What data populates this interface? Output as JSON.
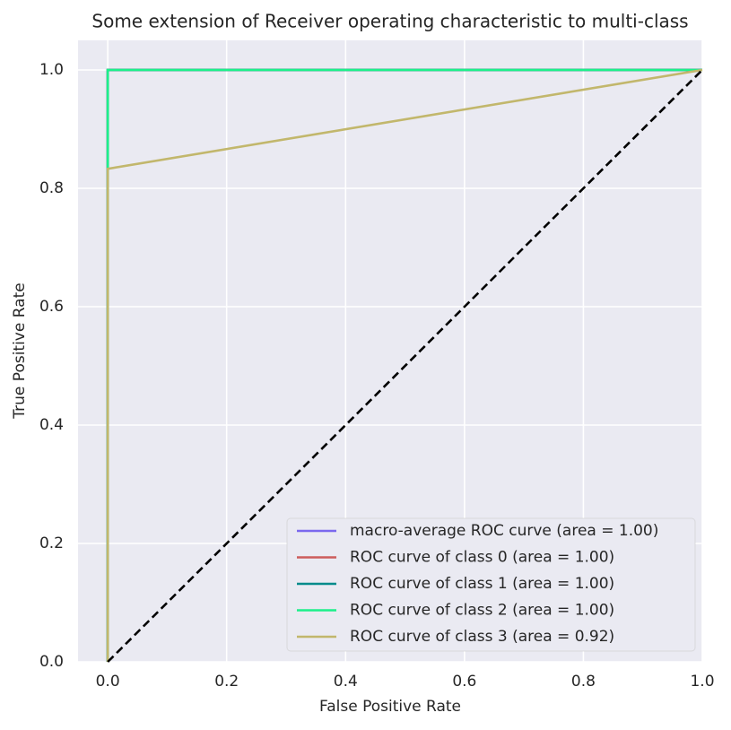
{
  "chart_data": {
    "type": "line",
    "title": "Some extension of Receiver operating characteristic to multi-class",
    "x_label": "False Positive Rate",
    "y_label": "True Positive Rate",
    "xlim": [
      -0.05,
      1.0
    ],
    "ylim": [
      0,
      1.05
    ],
    "xticks": [
      {
        "value": 0,
        "label": "0.0"
      },
      0.2,
      0.4,
      0.6,
      0.8,
      {
        "value": 1,
        "label": "1.0"
      }
    ],
    "yticks": [
      {
        "value": 0,
        "label": "0.0"
      },
      0.2,
      0.4,
      0.6,
      0.8,
      {
        "value": 1,
        "label": "1.0"
      }
    ],
    "grid": true,
    "legend": "lower right",
    "series": [
      {
        "name": "macro-average ROC curve (area = 1.00)",
        "color": "#7b68ee",
        "x": [
          0,
          0,
          1
        ],
        "values": [
          0,
          1,
          1
        ]
      },
      {
        "name": "ROC curve of class 0 (area = 1.00)",
        "color": "#cd5c5c",
        "x": [
          0,
          0,
          1
        ],
        "values": [
          0,
          1,
          1
        ]
      },
      {
        "name": "ROC curve of class 1 (area = 1.00)",
        "color": "#008b8b",
        "x": [
          0,
          0,
          1
        ],
        "values": [
          0,
          1,
          1
        ]
      },
      {
        "name": "ROC curve of class 2 (area = 1.00)",
        "color": "#1cf08a",
        "x": [
          0,
          0,
          1
        ],
        "values": [
          0,
          1,
          1
        ]
      },
      {
        "name": "ROC curve of class 3 (area = 0.92)",
        "color": "#c2b76c",
        "x": [
          0,
          0,
          1
        ],
        "values": [
          0,
          0.833,
          1
        ]
      }
    ],
    "diagonal": {
      "color": "#000000",
      "x": [
        0,
        1
      ],
      "values": [
        0,
        1
      ]
    }
  }
}
